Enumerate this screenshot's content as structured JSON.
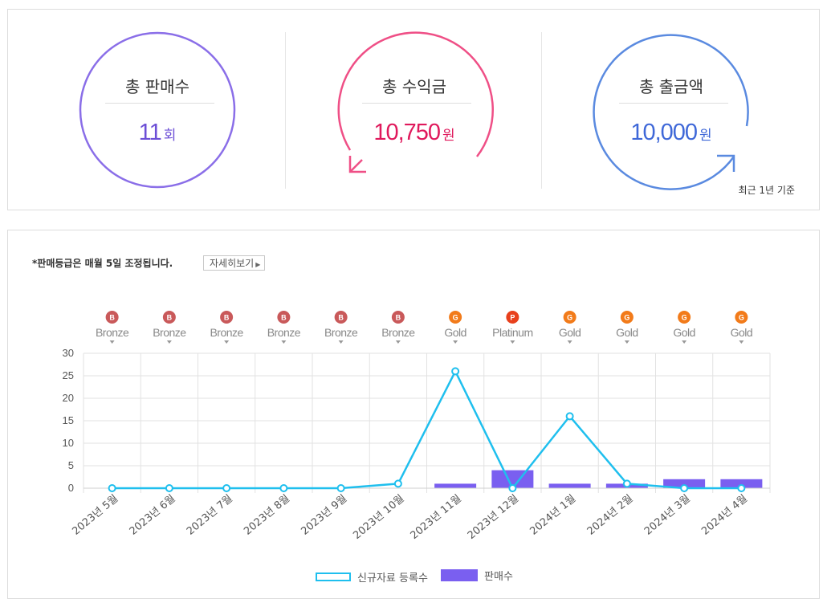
{
  "summary": {
    "sales": {
      "title": "총 판매수",
      "value": "11",
      "unit": "회",
      "color": "#6c4fd6",
      "ring_color": "#8a6ee8"
    },
    "revenue": {
      "title": "총 수익금",
      "value": "10,750",
      "unit": "원",
      "color": "#e0195c",
      "ring_color": "#ef4f86"
    },
    "withdrawal": {
      "title": "총 출금액",
      "value": "10,000",
      "unit": "원",
      "color": "#3f68d8",
      "ring_color": "#5a8ae0"
    },
    "footnote": "최근 1년 기준"
  },
  "notice": "*판매등급은 매월 5일 조정됩니다.",
  "detail_button": "자세히보기",
  "grades": [
    {
      "badge": "B",
      "label": "Bronze",
      "color": "#c9595a"
    },
    {
      "badge": "B",
      "label": "Bronze",
      "color": "#c9595a"
    },
    {
      "badge": "B",
      "label": "Bronze",
      "color": "#c9595a"
    },
    {
      "badge": "B",
      "label": "Bronze",
      "color": "#c9595a"
    },
    {
      "badge": "B",
      "label": "Bronze",
      "color": "#c9595a"
    },
    {
      "badge": "B",
      "label": "Bronze",
      "color": "#c9595a"
    },
    {
      "badge": "G",
      "label": "Gold",
      "color": "#f27b1a"
    },
    {
      "badge": "P",
      "label": "Platinum",
      "color": "#e8401c"
    },
    {
      "badge": "G",
      "label": "Gold",
      "color": "#f27b1a"
    },
    {
      "badge": "G",
      "label": "Gold",
      "color": "#f27b1a"
    },
    {
      "badge": "G",
      "label": "Gold",
      "color": "#f27b1a"
    },
    {
      "badge": "G",
      "label": "Gold",
      "color": "#f27b1a"
    }
  ],
  "chart_data": {
    "type": "bar",
    "categories": [
      "2023년 5월",
      "2023년 6월",
      "2023년 7월",
      "2023년 8월",
      "2023년 9월",
      "2023년 10월",
      "2023년 11월",
      "2023년 12월",
      "2024년 1월",
      "2024년 2월",
      "2024년 3월",
      "2024년 4월"
    ],
    "series": [
      {
        "name": "신규자료 등록수",
        "type": "line",
        "color": "#1fbfee",
        "values": [
          0,
          0,
          0,
          0,
          0,
          1,
          26,
          0,
          16,
          1,
          0,
          0
        ]
      },
      {
        "name": "판매수",
        "type": "bar",
        "color": "#7a5ff0",
        "values": [
          0,
          0,
          0,
          0,
          0,
          0,
          1,
          4,
          1,
          1,
          2,
          2
        ]
      }
    ],
    "ylim": [
      0,
      30
    ],
    "yticks": [
      0,
      5,
      10,
      15,
      20,
      25,
      30
    ],
    "grid": true,
    "legend": "bottom"
  }
}
